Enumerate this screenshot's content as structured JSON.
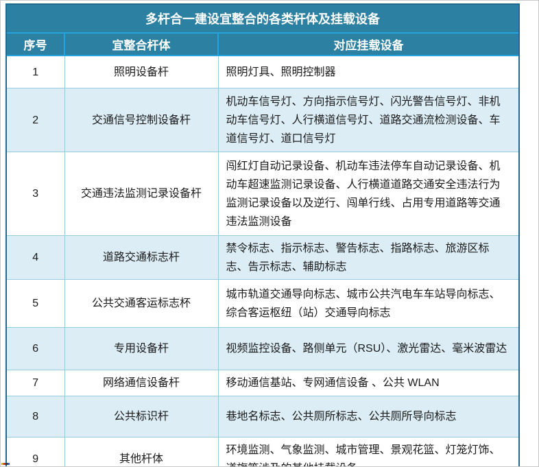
{
  "colors": {
    "header_teal": "#2c80a2",
    "divider_cyan": "#25a3de",
    "outer_border": "#20688c",
    "cell_border": "#96cbe0",
    "alt_row_bg": "#dcedf6",
    "body_text": "#1a1a1a",
    "header_text": "#ffffff"
  },
  "table": {
    "title": "多杆合一建设宜整合的各类杆体及挂载设备",
    "columns": {
      "no": "序号",
      "pole": "宜整合杆体",
      "devices": "对应挂载设备"
    },
    "rows": [
      {
        "no": "1",
        "pole": "照明设备杆",
        "devices": "照明灯具、照明控制器"
      },
      {
        "no": "2",
        "pole": "交通信号控制设备杆",
        "devices": "机动车信号灯、方向指示信号灯、闪光警告信号灯、非机动车信号灯、人行横道信号灯、道路交通流检测设备、车道信号灯、道口信号灯"
      },
      {
        "no": "3",
        "pole": "交通违法监测记录设备杆",
        "devices": "闯红灯自动记录设备、机动车违法停车自动记录设备、机动车超速监测记录设备、人行横道道路交通安全违法行为监测记录设备以及逆行、闯单行线、占用专用道路等交通违法监测设备"
      },
      {
        "no": "4",
        "pole": "道路交通标志杆",
        "devices": "禁令标志、指示标志、警告标志、指路标志、旅游区标志、告示标志、辅助标志"
      },
      {
        "no": "5",
        "pole": "公共交通客运标志杯",
        "devices": "城市轨道交通导向标志、城市公共汽电车车站导向标志、综合客运枢纽（站）交通导向标志"
      },
      {
        "no": "6",
        "pole": "专用设备杆",
        "devices": "视频监控设备、路侧单元（RSU）、激光雷达、毫米波雷达"
      },
      {
        "no": "7",
        "pole": "网络通信设备杆",
        "devices": "移动通信基站、专网通信设备 、公共 WLAN"
      },
      {
        "no": "8",
        "pole": "公共标识杆",
        "devices": "巷地名标志、公共厕所标志、公共厕所导向标志"
      },
      {
        "no": "9",
        "pole": "其他杆体",
        "devices": "环境监测、气象监测、城市管理、景观花篮、灯笼灯饰、道旗等涉及的其他挂载设备"
      }
    ]
  },
  "artifact": {
    "colors": [
      "#d9a43c",
      "#cc3333",
      "#333333",
      "#2b5fcc"
    ]
  }
}
